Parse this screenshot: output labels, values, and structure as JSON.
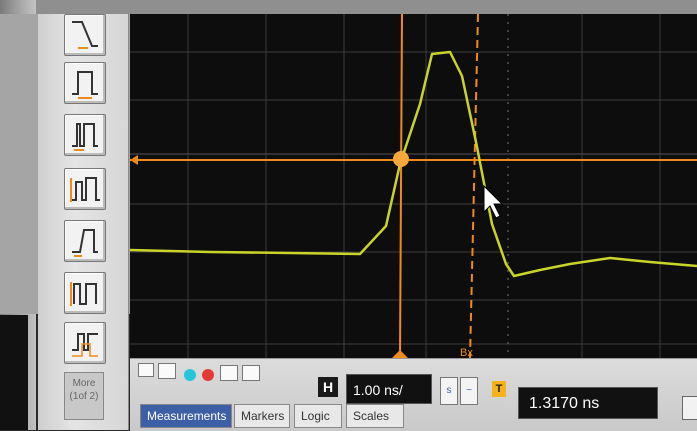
{
  "sidebar": {
    "trigger_modes": [
      {
        "name": "edge-rising-trigger"
      },
      {
        "name": "pulse-width-trigger"
      },
      {
        "name": "glitch-trigger"
      },
      {
        "name": "runt-trigger"
      },
      {
        "name": "transition-trigger"
      },
      {
        "name": "setup-hold-trigger"
      },
      {
        "name": "pattern-trigger"
      }
    ],
    "more_label": "More",
    "more_sub": "(1of 2)"
  },
  "display": {
    "marker_ax": "",
    "marker_bx": "Bx"
  },
  "controls": {
    "h_label": "H",
    "timebase": "1.00 ns/",
    "delay": "1.3170 ns",
    "trigger_marker": "T",
    "tabs": [
      "Measurements",
      "Markers",
      "Logic",
      "Scales"
    ],
    "colors": {
      "cyan_dot": "#26c6da",
      "red_dot": "#e53935",
      "trace": "#c8d42a",
      "marker": "#f08a1e"
    }
  }
}
